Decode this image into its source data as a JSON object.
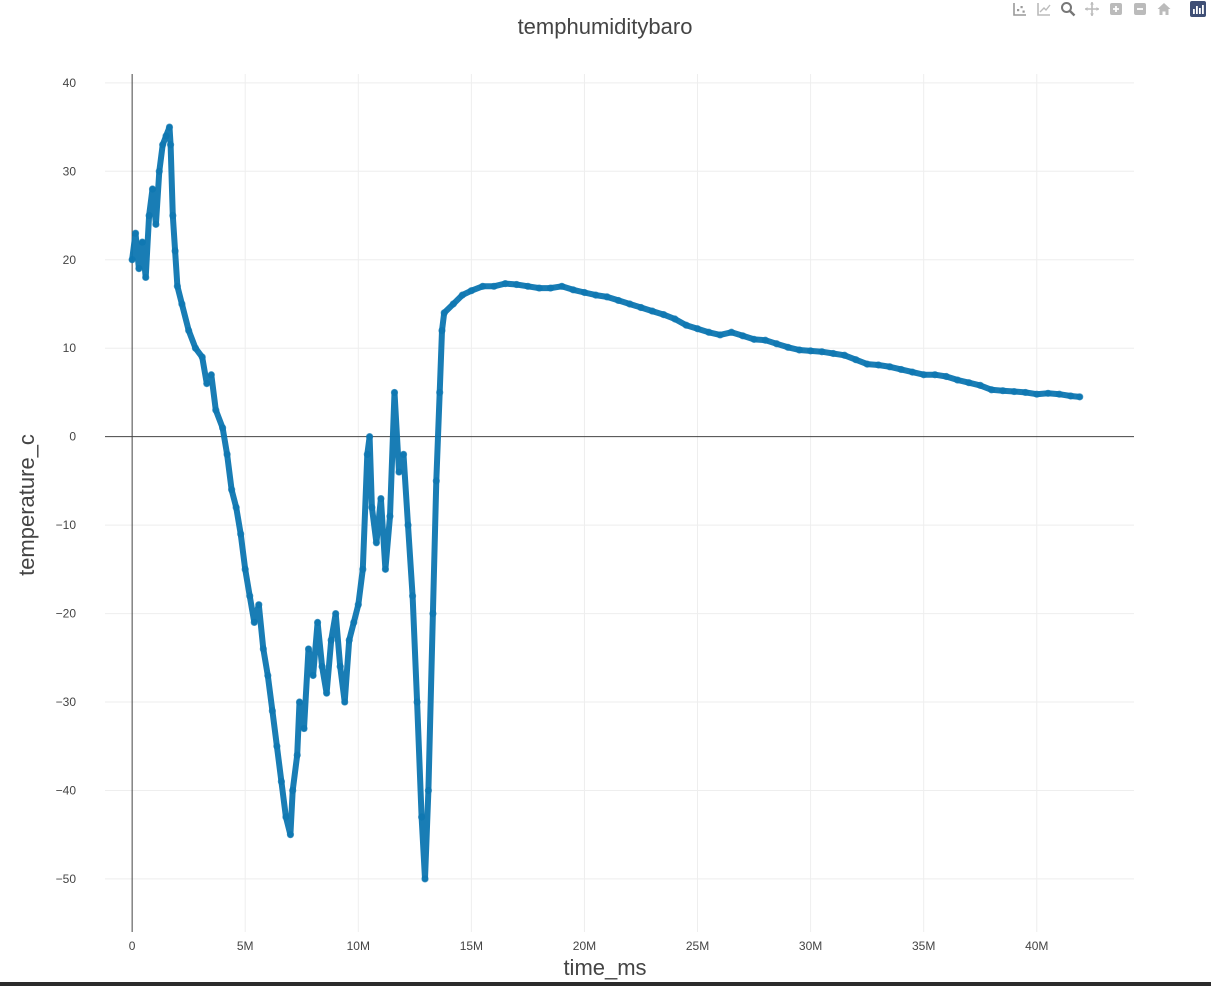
{
  "chart_data": {
    "type": "scatter",
    "title": "temphumiditybaro",
    "xlabel": "time_ms",
    "ylabel": "temperature_c",
    "xlim": [
      -1200000,
      44300000
    ],
    "ylim": [
      -56,
      41
    ],
    "xticks": [
      0,
      5000000,
      10000000,
      15000000,
      20000000,
      25000000,
      30000000,
      35000000,
      40000000
    ],
    "xtick_labels": [
      "0",
      "5M",
      "10M",
      "15M",
      "20M",
      "25M",
      "30M",
      "35M",
      "40M"
    ],
    "yticks": [
      40,
      30,
      20,
      10,
      0,
      -10,
      -20,
      -30,
      -40,
      -50
    ],
    "ytick_labels": [
      "40",
      "30",
      "20",
      "10",
      "0",
      "−10",
      "−20",
      "−30",
      "−40",
      "−50"
    ],
    "grid": true,
    "zero_lines": true,
    "marker_color": "#0d76b1",
    "series": [
      {
        "points": [
          [
            0,
            20
          ],
          [
            150000,
            23
          ],
          [
            300000,
            19
          ],
          [
            450000,
            22
          ],
          [
            600000,
            18
          ],
          [
            750000,
            25
          ],
          [
            900000,
            28
          ],
          [
            1050000,
            24
          ],
          [
            1200000,
            30
          ],
          [
            1350000,
            33
          ],
          [
            1500000,
            34
          ],
          [
            1650000,
            35
          ],
          [
            1700000,
            33
          ],
          [
            1800000,
            25
          ],
          [
            1900000,
            21
          ],
          [
            2000000,
            17
          ],
          [
            2200000,
            15
          ],
          [
            2500000,
            12
          ],
          [
            2800000,
            10
          ],
          [
            3100000,
            9
          ],
          [
            3300000,
            6
          ],
          [
            3500000,
            7
          ],
          [
            3700000,
            3
          ],
          [
            4000000,
            1
          ],
          [
            4200000,
            -2
          ],
          [
            4400000,
            -6
          ],
          [
            4600000,
            -8
          ],
          [
            4800000,
            -11
          ],
          [
            5000000,
            -15
          ],
          [
            5200000,
            -18
          ],
          [
            5400000,
            -21
          ],
          [
            5600000,
            -19
          ],
          [
            5800000,
            -24
          ],
          [
            6000000,
            -27
          ],
          [
            6200000,
            -31
          ],
          [
            6400000,
            -35
          ],
          [
            6600000,
            -39
          ],
          [
            6800000,
            -43
          ],
          [
            7000000,
            -45
          ],
          [
            7100000,
            -40
          ],
          [
            7300000,
            -36
          ],
          [
            7400000,
            -30
          ],
          [
            7600000,
            -33
          ],
          [
            7800000,
            -24
          ],
          [
            8000000,
            -27
          ],
          [
            8200000,
            -21
          ],
          [
            8400000,
            -26
          ],
          [
            8600000,
            -29
          ],
          [
            8800000,
            -23
          ],
          [
            9000000,
            -20
          ],
          [
            9200000,
            -26
          ],
          [
            9400000,
            -30
          ],
          [
            9600000,
            -23
          ],
          [
            9800000,
            -21
          ],
          [
            10000000,
            -19
          ],
          [
            10200000,
            -15
          ],
          [
            10400000,
            -2
          ],
          [
            10500000,
            0
          ],
          [
            10600000,
            -8
          ],
          [
            10800000,
            -12
          ],
          [
            11000000,
            -7
          ],
          [
            11200000,
            -15
          ],
          [
            11400000,
            -9
          ],
          [
            11600000,
            5
          ],
          [
            11800000,
            -4
          ],
          [
            12000000,
            -2
          ],
          [
            12200000,
            -10
          ],
          [
            12400000,
            -18
          ],
          [
            12600000,
            -30
          ],
          [
            12800000,
            -43
          ],
          [
            12950000,
            -50
          ],
          [
            13100000,
            -40
          ],
          [
            13300000,
            -20
          ],
          [
            13450000,
            -5
          ],
          [
            13600000,
            5
          ],
          [
            13700000,
            12
          ],
          [
            13800000,
            14
          ],
          [
            14200000,
            15
          ],
          [
            14600000,
            16
          ],
          [
            15000000,
            16.5
          ],
          [
            15500000,
            17
          ],
          [
            16000000,
            17
          ],
          [
            16500000,
            17.3
          ],
          [
            17000000,
            17.2
          ],
          [
            17500000,
            17
          ],
          [
            18000000,
            16.8
          ],
          [
            18500000,
            16.8
          ],
          [
            19000000,
            17
          ],
          [
            19500000,
            16.6
          ],
          [
            20000000,
            16.3
          ],
          [
            20500000,
            16
          ],
          [
            21000000,
            15.8
          ],
          [
            21500000,
            15.4
          ],
          [
            22000000,
            15
          ],
          [
            22500000,
            14.6
          ],
          [
            23000000,
            14.2
          ],
          [
            23500000,
            13.8
          ],
          [
            24000000,
            13.3
          ],
          [
            24500000,
            12.6
          ],
          [
            25000000,
            12.2
          ],
          [
            25500000,
            11.8
          ],
          [
            26000000,
            11.5
          ],
          [
            26500000,
            11.8
          ],
          [
            27000000,
            11.4
          ],
          [
            27500000,
            11
          ],
          [
            28000000,
            10.9
          ],
          [
            28500000,
            10.5
          ],
          [
            29000000,
            10.1
          ],
          [
            29500000,
            9.8
          ],
          [
            30000000,
            9.7
          ],
          [
            30500000,
            9.6
          ],
          [
            31000000,
            9.4
          ],
          [
            31500000,
            9.2
          ],
          [
            32000000,
            8.7
          ],
          [
            32500000,
            8.2
          ],
          [
            33000000,
            8.1
          ],
          [
            33500000,
            7.9
          ],
          [
            34000000,
            7.6
          ],
          [
            34500000,
            7.3
          ],
          [
            35000000,
            7
          ],
          [
            35500000,
            7
          ],
          [
            36000000,
            6.8
          ],
          [
            36500000,
            6.4
          ],
          [
            37000000,
            6.1
          ],
          [
            37500000,
            5.8
          ],
          [
            38000000,
            5.3
          ],
          [
            38500000,
            5.2
          ],
          [
            39000000,
            5.1
          ],
          [
            39500000,
            5
          ],
          [
            40000000,
            4.8
          ],
          [
            40500000,
            4.9
          ],
          [
            41000000,
            4.8
          ],
          [
            41500000,
            4.6
          ],
          [
            41900000,
            4.5
          ]
        ]
      }
    ]
  },
  "modebar": {
    "icons": [
      "compare-data-icon",
      "show-closest-icon",
      "zoom-icon",
      "pan-icon",
      "zoom-in-icon",
      "zoom-out-icon",
      "home-icon",
      "plotly-logo-icon"
    ]
  }
}
